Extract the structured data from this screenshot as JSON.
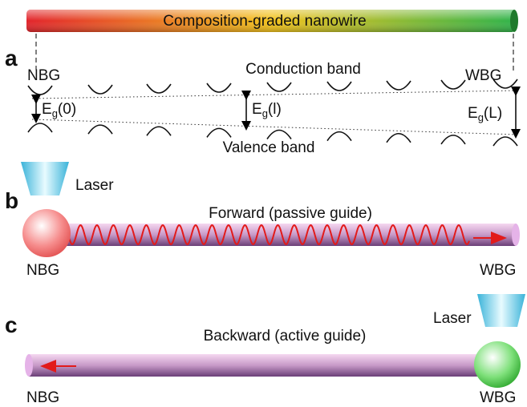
{
  "header": {
    "title": "Composition-graded nanowire"
  },
  "panel_a": {
    "label": "a",
    "left": "NBG",
    "right": "WBG",
    "conduction": "Conduction band",
    "valence": "Valence band",
    "gaps": [
      {
        "symbol": "E",
        "subscript": "g",
        "arg": "(0)"
      },
      {
        "symbol": "E",
        "subscript": "g",
        "arg": "(l)"
      },
      {
        "symbol": "E",
        "subscript": "g",
        "arg": "(L)"
      }
    ]
  },
  "panel_b": {
    "label": "b",
    "laser": "Laser",
    "caption": "Forward (passive guide)",
    "left": "NBG",
    "right": "WBG"
  },
  "panel_c": {
    "label": "c",
    "laser": "Laser",
    "caption": "Backward (active guide)",
    "left": "NBG",
    "right": "WBG"
  }
}
